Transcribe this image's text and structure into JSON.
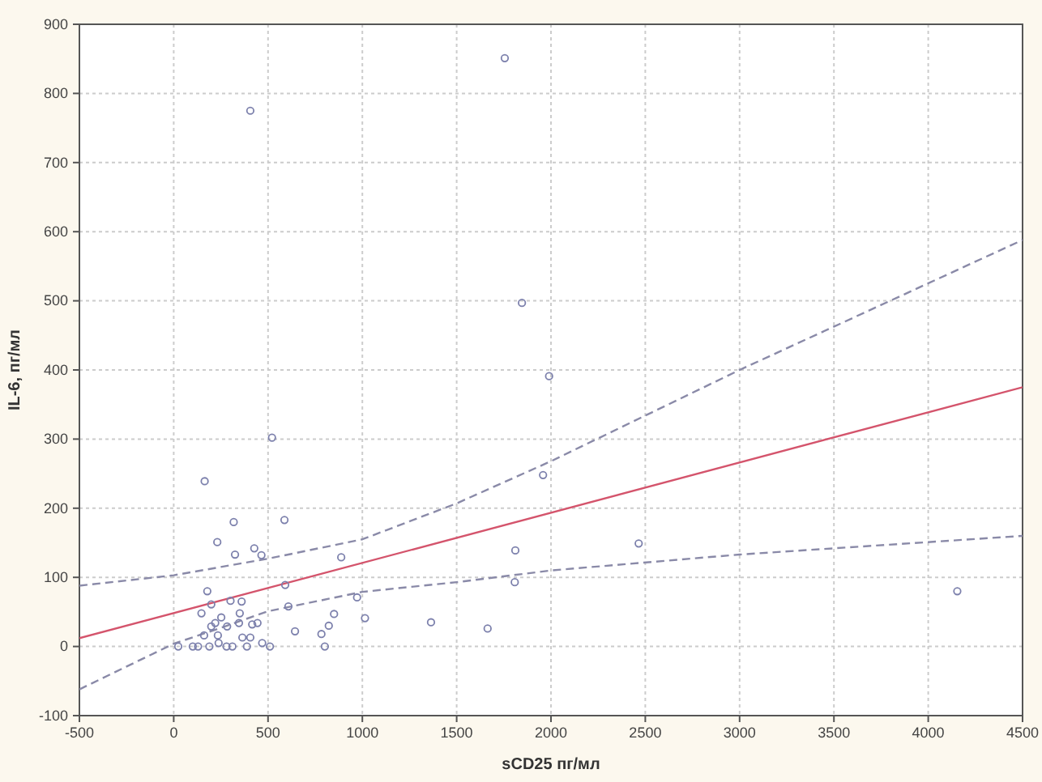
{
  "chart_data": {
    "type": "scatter",
    "xlabel": "sCD25 пг/мл",
    "ylabel": "IL-6, пг/мл",
    "xlim": [
      -500,
      4500
    ],
    "xticks": [
      -500,
      0,
      500,
      1000,
      1500,
      2000,
      2500,
      3000,
      3500,
      4000,
      4500
    ],
    "ylim": [
      -100,
      900
    ],
    "yticks": [
      -100,
      0,
      100,
      200,
      300,
      400,
      500,
      600,
      700,
      800,
      900
    ],
    "grid": true,
    "series": [
      {
        "color": "#7c80ac",
        "marker": "circle",
        "x": [
          1755,
          406,
          1846,
          1990,
          521,
          1958,
          164,
          318,
          587,
          231,
          427,
          325,
          465,
          888,
          1811,
          2465,
          1808,
          591,
          4154,
          178,
          199,
          301,
          360,
          972,
          147,
          350,
          608,
          850,
          1014,
          252,
          1364,
          1664,
          643,
          783,
          822,
          199,
          220,
          283,
          346,
          416,
          444,
          161,
          234,
          364,
          406,
          469,
          24,
          101,
          129,
          189,
          280,
          311,
          388,
          510,
          801,
          238
        ],
        "values": [
          851,
          775,
          497,
          391,
          302,
          248,
          239,
          180,
          183,
          151,
          142,
          133,
          132,
          129,
          139,
          149,
          93,
          89,
          80,
          80,
          61,
          66,
          65,
          71,
          48,
          48,
          58,
          47,
          41,
          42,
          35,
          26,
          22,
          18,
          30,
          29,
          34,
          29,
          34,
          32,
          34,
          16,
          16,
          13,
          13,
          5,
          0,
          0,
          0,
          0,
          0,
          0,
          0,
          0,
          0,
          5
        ]
      },
      {
        "type": "line",
        "color": "#d4546c",
        "line_style": "solid",
        "x": [
          -500,
          4500
        ],
        "values": [
          12,
          375
        ]
      },
      {
        "type": "line",
        "color": "#8a8aa8",
        "line_style": "dashed",
        "x": [
          -500,
          0,
          500,
          1000,
          1500,
          2000,
          3000,
          4500
        ],
        "values": [
          88,
          103,
          127,
          155,
          207,
          268,
          400,
          588
        ]
      },
      {
        "type": "line",
        "color": "#8a8aa8",
        "line_style": "dashed",
        "x": [
          -500,
          0,
          250,
          500,
          1000,
          1500,
          2000,
          3000,
          4500
        ],
        "values": [
          -62,
          4,
          27,
          51,
          79,
          93,
          110,
          133,
          160
        ]
      }
    ]
  }
}
